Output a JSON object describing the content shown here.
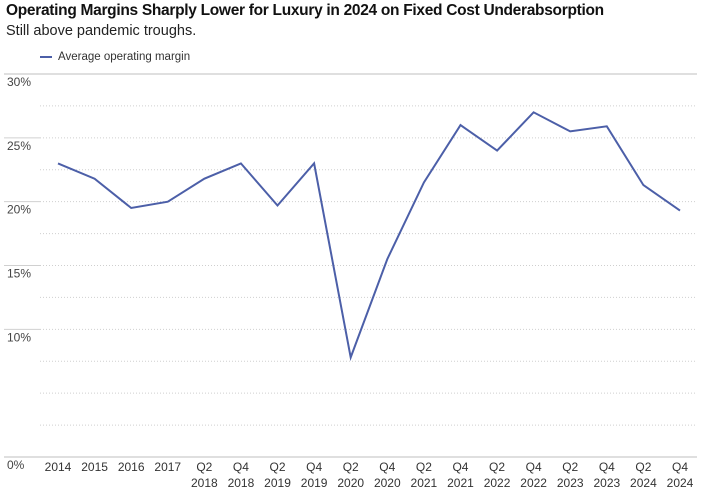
{
  "chart_data": {
    "type": "line",
    "title": "Operating Margins Sharply Lower for Luxury in 2024 on Fixed  Cost Underabsorption",
    "subtitle": "Still above pandemic troughs.",
    "legend_position": "top-left",
    "grid": true,
    "ylim": [
      0,
      30
    ],
    "y_ticks": [
      "30%",
      "25%",
      "20%",
      "15%",
      "10%",
      "0%"
    ],
    "x": [
      [
        "2014"
      ],
      [
        "2015"
      ],
      [
        "2016"
      ],
      [
        "2017"
      ],
      [
        "Q2",
        "2018"
      ],
      [
        "Q4",
        "2018"
      ],
      [
        "Q2",
        "2019"
      ],
      [
        "Q4",
        "2019"
      ],
      [
        "Q2",
        "2020"
      ],
      [
        "Q4",
        "2020"
      ],
      [
        "Q2",
        "2021"
      ],
      [
        "Q4",
        "2021"
      ],
      [
        "Q2",
        "2022"
      ],
      [
        "Q4",
        "2022"
      ],
      [
        "Q2",
        "2023"
      ],
      [
        "Q4",
        "2023"
      ],
      [
        "Q2",
        "2024"
      ],
      [
        "Q4",
        "2024"
      ]
    ],
    "series": [
      {
        "name": "Average operating margin",
        "color": "#4c5fa8",
        "values": [
          23.0,
          21.8,
          19.5,
          20.0,
          21.8,
          23.0,
          19.7,
          23.0,
          7.8,
          15.5,
          21.5,
          26.0,
          24.0,
          27.0,
          25.5,
          25.9,
          21.3,
          19.3
        ]
      }
    ]
  }
}
